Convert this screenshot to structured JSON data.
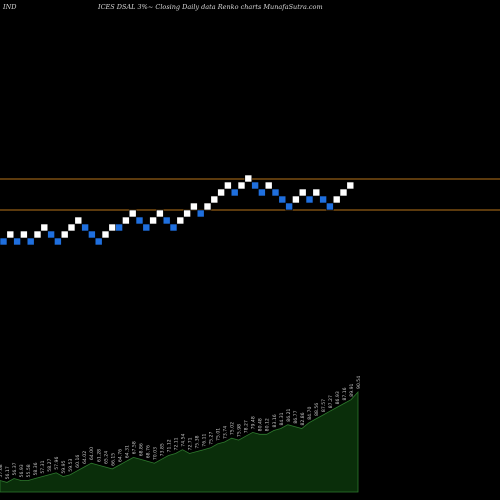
{
  "header": {
    "left": "IND",
    "center": "ICES DSAL 3%~ Closing Daily data Renko charts MunafaSutra.com"
  },
  "chart_data": {
    "type": "renko",
    "title": "ICES DSAL 3%~ Closing Daily data Renko charts MunafaSutra.com",
    "box_size_percent": 3,
    "colors": {
      "up": "#ffffff",
      "down": "#1f6fde",
      "level_line": "#b8741a",
      "volume_fill": "#0a2e0a",
      "volume_line": "#2e7a2e",
      "label": "#c8c8c8"
    },
    "levels": [
      0,
      -3
    ],
    "bricks": [
      {
        "i": 0,
        "d": "down",
        "lvl": -4
      },
      {
        "i": 1,
        "d": "up",
        "lvl": -3
      },
      {
        "i": 2,
        "d": "down",
        "lvl": -4
      },
      {
        "i": 3,
        "d": "up",
        "lvl": -3
      },
      {
        "i": 4,
        "d": "down",
        "lvl": -4
      },
      {
        "i": 5,
        "d": "up",
        "lvl": -3
      },
      {
        "i": 6,
        "d": "up",
        "lvl": -2
      },
      {
        "i": 7,
        "d": "down",
        "lvl": -3
      },
      {
        "i": 8,
        "d": "down",
        "lvl": -4
      },
      {
        "i": 9,
        "d": "up",
        "lvl": -3
      },
      {
        "i": 10,
        "d": "up",
        "lvl": -2
      },
      {
        "i": 11,
        "d": "up",
        "lvl": -1
      },
      {
        "i": 12,
        "d": "down",
        "lvl": -2
      },
      {
        "i": 13,
        "d": "down",
        "lvl": -3
      },
      {
        "i": 14,
        "d": "down",
        "lvl": -4
      },
      {
        "i": 15,
        "d": "up",
        "lvl": -3
      },
      {
        "i": 16,
        "d": "up",
        "lvl": -2
      },
      {
        "i": 17,
        "d": "down",
        "lvl": -2
      },
      {
        "i": 18,
        "d": "up",
        "lvl": -1
      },
      {
        "i": 19,
        "d": "up",
        "lvl": 0
      },
      {
        "i": 20,
        "d": "down",
        "lvl": -1
      },
      {
        "i": 21,
        "d": "down",
        "lvl": -2
      },
      {
        "i": 22,
        "d": "up",
        "lvl": -1
      },
      {
        "i": 23,
        "d": "up",
        "lvl": 0
      },
      {
        "i": 24,
        "d": "down",
        "lvl": -1
      },
      {
        "i": 25,
        "d": "down",
        "lvl": -2
      },
      {
        "i": 26,
        "d": "up",
        "lvl": -1
      },
      {
        "i": 27,
        "d": "up",
        "lvl": 0
      },
      {
        "i": 28,
        "d": "up",
        "lvl": 1
      },
      {
        "i": 29,
        "d": "down",
        "lvl": 0
      },
      {
        "i": 30,
        "d": "up",
        "lvl": 1
      },
      {
        "i": 31,
        "d": "up",
        "lvl": 2
      },
      {
        "i": 32,
        "d": "up",
        "lvl": 3
      },
      {
        "i": 33,
        "d": "up",
        "lvl": 4
      },
      {
        "i": 34,
        "d": "down",
        "lvl": 3
      },
      {
        "i": 35,
        "d": "up",
        "lvl": 4
      },
      {
        "i": 36,
        "d": "up",
        "lvl": 5
      },
      {
        "i": 37,
        "d": "down",
        "lvl": 4
      },
      {
        "i": 38,
        "d": "down",
        "lvl": 3
      },
      {
        "i": 39,
        "d": "up",
        "lvl": 4
      },
      {
        "i": 40,
        "d": "down",
        "lvl": 3
      },
      {
        "i": 41,
        "d": "down",
        "lvl": 2
      },
      {
        "i": 42,
        "d": "down",
        "lvl": 1
      },
      {
        "i": 43,
        "d": "up",
        "lvl": 2
      },
      {
        "i": 44,
        "d": "up",
        "lvl": 3
      },
      {
        "i": 45,
        "d": "down",
        "lvl": 2
      },
      {
        "i": 46,
        "d": "up",
        "lvl": 3
      },
      {
        "i": 47,
        "d": "down",
        "lvl": 2
      },
      {
        "i": 48,
        "d": "down",
        "lvl": 1
      },
      {
        "i": 49,
        "d": "up",
        "lvl": 2
      },
      {
        "i": 50,
        "d": "up",
        "lvl": 3
      },
      {
        "i": 51,
        "d": "up",
        "lvl": 4
      }
    ],
    "volume": [
      6,
      5,
      7,
      6,
      6,
      7,
      8,
      9,
      10,
      8,
      9,
      11,
      13,
      15,
      14,
      13,
      12,
      14,
      16,
      18,
      17,
      16,
      15,
      17,
      19,
      20,
      22,
      20,
      21,
      22,
      23,
      25,
      26,
      28,
      27,
      29,
      31,
      30,
      30,
      32,
      33,
      35,
      34,
      33,
      36,
      38,
      40,
      42,
      44,
      46,
      48,
      52
    ],
    "volume_labels": [
      "57.68",
      "56.17",
      "56.37",
      "56.93",
      "55.58",
      "58.36",
      "57.31",
      "58.27",
      "57.96",
      "59.95",
      "59.53",
      "60.16",
      "64.02",
      "64.00",
      "61.28",
      "65.24",
      "66.15",
      "64.76",
      "64.31",
      "67.58",
      "68.86",
      "68.76",
      "70.03",
      "73.85",
      "71.12",
      "72.11",
      "74.54",
      "72.71",
      "75.38",
      "76.11",
      "75.27",
      "75.01",
      "73.74",
      "75.02",
      "75.98",
      "78.27",
      "79.48",
      "80.48",
      "80.12",
      "83.16",
      "84.31",
      "86.21",
      "86.77",
      "82.86",
      "84.70",
      "88.56",
      "87.57",
      "87.27",
      "86.93",
      "87.16",
      "89.91",
      "90.54"
    ]
  }
}
